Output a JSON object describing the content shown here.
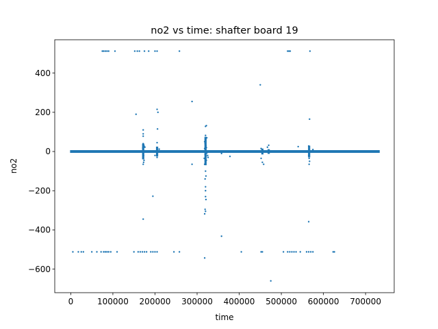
{
  "chart_data": {
    "type": "scatter",
    "title": "no2 vs time: shafter board 19",
    "xlabel": "time",
    "ylabel": "no2",
    "xlim": [
      -38000,
      768000
    ],
    "ylim": [
      -720,
      570
    ],
    "xticks": [
      0,
      100000,
      200000,
      300000,
      400000,
      500000,
      600000,
      700000
    ],
    "yticks": [
      -600,
      -400,
      -200,
      0,
      200,
      400
    ],
    "grid": false,
    "marker_color": "#1f77b4",
    "baseline": {
      "y": 0,
      "x_start": 0,
      "x_end": 732000
    },
    "points": [
      {
        "x": 75000,
        "y": 512
      },
      {
        "x": 78000,
        "y": 512
      },
      {
        "x": 82000,
        "y": 512
      },
      {
        "x": 86000,
        "y": 512
      },
      {
        "x": 90000,
        "y": 512
      },
      {
        "x": 105000,
        "y": 512
      },
      {
        "x": 152000,
        "y": 512
      },
      {
        "x": 158000,
        "y": 512
      },
      {
        "x": 163000,
        "y": 512
      },
      {
        "x": 175000,
        "y": 512
      },
      {
        "x": 185000,
        "y": 512
      },
      {
        "x": 200000,
        "y": 512
      },
      {
        "x": 205000,
        "y": 512
      },
      {
        "x": 258000,
        "y": 512
      },
      {
        "x": 515000,
        "y": 512
      },
      {
        "x": 518000,
        "y": 512
      },
      {
        "x": 521000,
        "y": 512
      },
      {
        "x": 568000,
        "y": 512
      },
      {
        "x": 450000,
        "y": 340
      },
      {
        "x": 288000,
        "y": 255
      },
      {
        "x": 205000,
        "y": 215
      },
      {
        "x": 207000,
        "y": 200
      },
      {
        "x": 155000,
        "y": 190
      },
      {
        "x": 567000,
        "y": 165
      },
      {
        "x": 322000,
        "y": 132
      },
      {
        "x": 320000,
        "y": 128
      },
      {
        "x": 206000,
        "y": 115
      },
      {
        "x": 172000,
        "y": 110
      },
      {
        "x": 172000,
        "y": 90
      },
      {
        "x": 172000,
        "y": 78
      },
      {
        "x": 320000,
        "y": 82
      },
      {
        "x": 323000,
        "y": 70
      },
      {
        "x": 320000,
        "y": 60
      },
      {
        "x": 318000,
        "y": 50
      },
      {
        "x": 205000,
        "y": 45
      },
      {
        "x": 172000,
        "y": 40
      },
      {
        "x": 173000,
        "y": 35
      },
      {
        "x": 174000,
        "y": 28
      },
      {
        "x": 176000,
        "y": 22
      },
      {
        "x": 171000,
        "y": 18
      },
      {
        "x": 470000,
        "y": 32
      },
      {
        "x": 467000,
        "y": 22
      },
      {
        "x": 540000,
        "y": 25
      },
      {
        "x": 565000,
        "y": 28
      },
      {
        "x": 566000,
        "y": 18
      },
      {
        "x": 452000,
        "y": 15
      },
      {
        "x": 575000,
        "y": 10
      },
      {
        "x": 210000,
        "y": 12
      },
      {
        "x": 319000,
        "y": 40
      },
      {
        "x": 321000,
        "y": 30
      },
      {
        "x": 322000,
        "y": 20
      },
      {
        "x": 318000,
        "y": 15
      },
      {
        "x": 320000,
        "y": 8
      },
      {
        "x": 323000,
        "y": -8
      },
      {
        "x": 319000,
        "y": -15
      },
      {
        "x": 321000,
        "y": -25
      },
      {
        "x": 317000,
        "y": -35
      },
      {
        "x": 322000,
        "y": -45
      },
      {
        "x": 320000,
        "y": -55
      },
      {
        "x": 318000,
        "y": -65
      },
      {
        "x": 320000,
        "y": -100
      },
      {
        "x": 321000,
        "y": -125
      },
      {
        "x": 319000,
        "y": -140
      },
      {
        "x": 320000,
        "y": -180
      },
      {
        "x": 320000,
        "y": -200
      },
      {
        "x": 320000,
        "y": -230
      },
      {
        "x": 321000,
        "y": -245
      },
      {
        "x": 319000,
        "y": -295
      },
      {
        "x": 320000,
        "y": -305
      },
      {
        "x": 318000,
        "y": -318
      },
      {
        "x": 172000,
        "y": -10
      },
      {
        "x": 173000,
        "y": -20
      },
      {
        "x": 172000,
        "y": -32
      },
      {
        "x": 174000,
        "y": -45
      },
      {
        "x": 173000,
        "y": -55
      },
      {
        "x": 172000,
        "y": -65
      },
      {
        "x": 200000,
        "y": -20
      },
      {
        "x": 205000,
        "y": -30
      },
      {
        "x": 288000,
        "y": -65
      },
      {
        "x": 325000,
        "y": -20
      },
      {
        "x": 326000,
        "y": -30
      },
      {
        "x": 358000,
        "y": -10
      },
      {
        "x": 378000,
        "y": -25
      },
      {
        "x": 452000,
        "y": -35
      },
      {
        "x": 455000,
        "y": -55
      },
      {
        "x": 458000,
        "y": -65
      },
      {
        "x": 565000,
        "y": -20
      },
      {
        "x": 566000,
        "y": -35
      },
      {
        "x": 567000,
        "y": -50
      },
      {
        "x": 566000,
        "y": -65
      },
      {
        "x": 195000,
        "y": -228
      },
      {
        "x": 172000,
        "y": -345
      },
      {
        "x": 565000,
        "y": -358
      },
      {
        "x": 358000,
        "y": -432
      },
      {
        "x": 5000,
        "y": -512
      },
      {
        "x": 18000,
        "y": -512
      },
      {
        "x": 25000,
        "y": -512
      },
      {
        "x": 30000,
        "y": -512
      },
      {
        "x": 50000,
        "y": -512
      },
      {
        "x": 62000,
        "y": -512
      },
      {
        "x": 72000,
        "y": -512
      },
      {
        "x": 78000,
        "y": -512
      },
      {
        "x": 82000,
        "y": -512
      },
      {
        "x": 86000,
        "y": -512
      },
      {
        "x": 90000,
        "y": -512
      },
      {
        "x": 95000,
        "y": -512
      },
      {
        "x": 110000,
        "y": -512
      },
      {
        "x": 150000,
        "y": -512
      },
      {
        "x": 160000,
        "y": -512
      },
      {
        "x": 165000,
        "y": -512
      },
      {
        "x": 170000,
        "y": -512
      },
      {
        "x": 175000,
        "y": -512
      },
      {
        "x": 180000,
        "y": -512
      },
      {
        "x": 190000,
        "y": -512
      },
      {
        "x": 195000,
        "y": -512
      },
      {
        "x": 200000,
        "y": -512
      },
      {
        "x": 205000,
        "y": -512
      },
      {
        "x": 245000,
        "y": -512
      },
      {
        "x": 258000,
        "y": -512
      },
      {
        "x": 405000,
        "y": -512
      },
      {
        "x": 452000,
        "y": -512
      },
      {
        "x": 455000,
        "y": -512
      },
      {
        "x": 505000,
        "y": -512
      },
      {
        "x": 515000,
        "y": -512
      },
      {
        "x": 520000,
        "y": -512
      },
      {
        "x": 525000,
        "y": -512
      },
      {
        "x": 530000,
        "y": -512
      },
      {
        "x": 535000,
        "y": -512
      },
      {
        "x": 545000,
        "y": -512
      },
      {
        "x": 560000,
        "y": -512
      },
      {
        "x": 565000,
        "y": -512
      },
      {
        "x": 570000,
        "y": -512
      },
      {
        "x": 575000,
        "y": -512
      },
      {
        "x": 623000,
        "y": -512
      },
      {
        "x": 626000,
        "y": -512
      },
      {
        "x": 318000,
        "y": -543
      },
      {
        "x": 475000,
        "y": -660
      }
    ],
    "clusters": [
      {
        "x": 172000,
        "y_min": -40,
        "y_max": 40
      },
      {
        "x": 205000,
        "y_min": -25,
        "y_max": 25
      },
      {
        "x": 320000,
        "y_min": -70,
        "y_max": 75
      },
      {
        "x": 566000,
        "y_min": -30,
        "y_max": 30
      },
      {
        "x": 455000,
        "y_min": -15,
        "y_max": 15
      },
      {
        "x": 470000,
        "y_min": -12,
        "y_max": 12
      }
    ]
  }
}
